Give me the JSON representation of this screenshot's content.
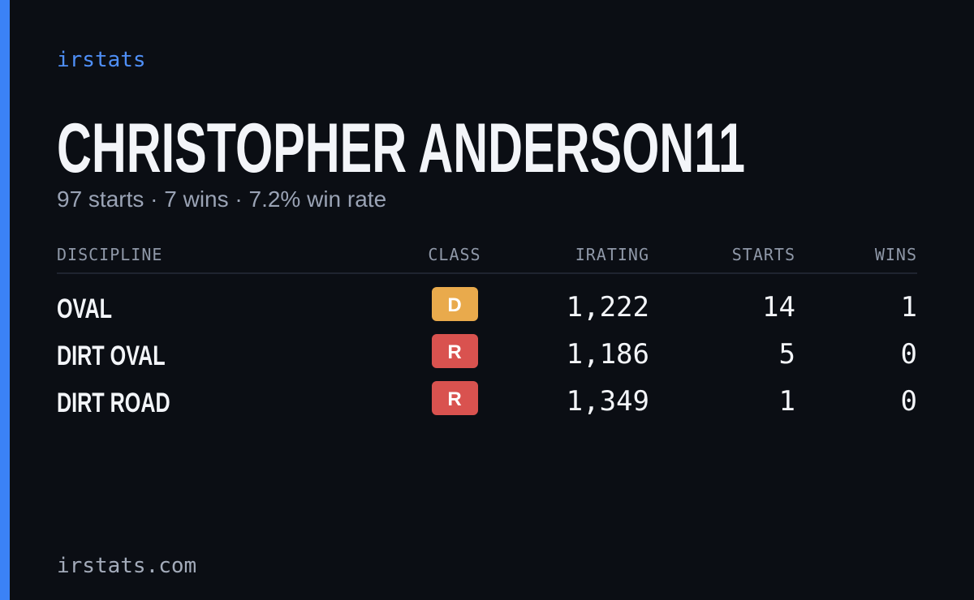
{
  "brand": "irstats",
  "header": {
    "title": "CHRISTOPHER ANDERSON11",
    "subtitle": "97 starts · 7 wins · 7.2% win rate"
  },
  "table": {
    "columns": [
      "DISCIPLINE",
      "CLASS",
      "IRATING",
      "STARTS",
      "WINS"
    ],
    "rows": [
      [
        "OVAL",
        "D",
        "1,222",
        "14",
        "1"
      ],
      [
        "DIRT OVAL",
        "R",
        "1,186",
        "5",
        "0"
      ],
      [
        "DIRT ROAD",
        "R",
        "1,349",
        "1",
        "0"
      ]
    ],
    "class_colors": [
      "#e9aa4c",
      "#d9524f",
      "#d9524f"
    ]
  },
  "footer": "irstats.com"
}
